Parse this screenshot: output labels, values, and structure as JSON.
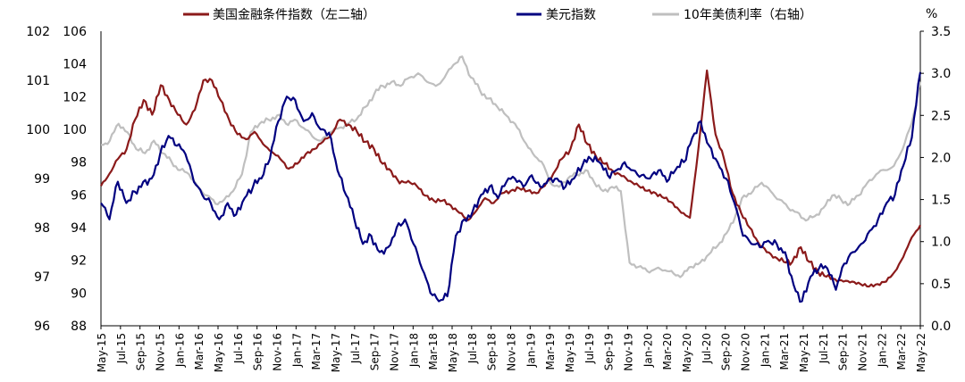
{
  "chart_data": {
    "type": "line",
    "title": "",
    "legend_position": "top",
    "grid": false,
    "x_ticks": [
      "May-15",
      "Jul-15",
      "Sep-15",
      "Nov-15",
      "Jan-16",
      "Mar-16",
      "May-16",
      "Jul-16",
      "Sep-16",
      "Nov-16",
      "Jan-17",
      "Mar-17",
      "May-17",
      "Jul-17",
      "Sep-17",
      "Nov-17",
      "Jan-18",
      "Mar-18",
      "May-18",
      "Jul-18",
      "Sep-18",
      "Nov-18",
      "Jan-19",
      "Mar-19",
      "May-19",
      "Jul-19",
      "Sep-19",
      "Nov-19",
      "Jan-20",
      "Mar-20",
      "May-20",
      "Jul-20",
      "Sep-20",
      "Nov-20",
      "Jan-21",
      "Mar-21",
      "May-21",
      "Jul-21",
      "Sep-21",
      "Nov-21",
      "Jan-22",
      "Mar-22",
      "May-22"
    ],
    "axes": {
      "left_outer": {
        "ticks": [
          "102",
          "101",
          "100",
          "99",
          "98",
          "97",
          "96"
        ],
        "range": [
          96,
          102
        ]
      },
      "left_inner": {
        "ticks": [
          "106",
          "104",
          "102",
          "100",
          "98",
          "96",
          "94",
          "92",
          "90",
          "88"
        ],
        "range": [
          88,
          106
        ]
      },
      "right": {
        "unit": "%",
        "ticks": [
          "3.5",
          "3.0",
          "2.5",
          "2.0",
          "1.5",
          "1.0",
          "0.5",
          "0.0"
        ],
        "range": [
          0,
          3.5
        ]
      }
    },
    "series": [
      {
        "name": "美国金融条件指数（左二轴）",
        "axis": "left_outer",
        "color": "#8B1A1A",
        "values": [
          98.85,
          99.1,
          99.4,
          99.6,
          100.2,
          100.6,
          100.3,
          100.9,
          100.6,
          100.3,
          100.1,
          100.4,
          101.0,
          101.0,
          100.6,
          100.2,
          99.9,
          99.8,
          99.95,
          99.7,
          99.55,
          99.4,
          99.2,
          99.3,
          99.5,
          99.6,
          99.75,
          99.9,
          100.2,
          100.1,
          99.95,
          99.75,
          99.6,
          99.3,
          99.15,
          98.9,
          98.95,
          98.85,
          98.65,
          98.55,
          98.55,
          98.45,
          98.3,
          98.15,
          98.35,
          98.6,
          98.5,
          98.7,
          98.75,
          98.8,
          98.75,
          98.7,
          98.85,
          99.1,
          99.4,
          99.6,
          100.1,
          99.7,
          99.45,
          99.3,
          99.15,
          99.05,
          98.95,
          98.85,
          98.75,
          98.7,
          98.6,
          98.5,
          98.3,
          98.2,
          99.6,
          101.2,
          99.9,
          99.4,
          98.7,
          98.3,
          98.0,
          97.7,
          97.5,
          97.4,
          97.3,
          97.3,
          97.6,
          97.3,
          97.1,
          97.0,
          96.95,
          96.9,
          96.9,
          96.85,
          96.8,
          96.85,
          96.9,
          97.1,
          97.4,
          97.8,
          98.05
        ]
      },
      {
        "name": "美元指数",
        "axis": "left_inner",
        "color": "#000080",
        "values": [
          95.5,
          94.5,
          96.8,
          95.5,
          96.2,
          96.8,
          97.0,
          98.5,
          99.6,
          99.0,
          98.5,
          96.8,
          96.0,
          95.5,
          94.5,
          95.5,
          94.8,
          95.8,
          96.5,
          97.0,
          98.2,
          100.5,
          102.0,
          101.8,
          100.5,
          101.0,
          100.0,
          99.8,
          97.5,
          96.0,
          94.5,
          93.0,
          93.5,
          92.5,
          92.8,
          94.0,
          94.5,
          93.0,
          91.5,
          90.0,
          89.5,
          89.8,
          93.5,
          94.5,
          95.0,
          96.0,
          96.5,
          95.8,
          96.8,
          97.0,
          96.5,
          97.2,
          96.5,
          97.0,
          97.0,
          96.5,
          97.0,
          97.8,
          98.2,
          98.0,
          97.2,
          97.5,
          98.0,
          97.5,
          97.2,
          97.0,
          97.5,
          96.8,
          97.5,
          98.0,
          99.5,
          100.5,
          99.0,
          98.0,
          97.0,
          95.5,
          93.5,
          93.0,
          92.8,
          93.2,
          93.0,
          92.5,
          90.5,
          89.5,
          91.0,
          91.5,
          91.5,
          90.2,
          91.8,
          92.5,
          93.0,
          93.8,
          94.5,
          95.5,
          96.0,
          97.8,
          99.5,
          103.5
        ]
      },
      {
        "name": "10年美债利率（右轴）",
        "axis": "right",
        "color": "#bfbfbf",
        "values": [
          2.15,
          2.2,
          2.4,
          2.3,
          2.1,
          2.05,
          2.2,
          2.05,
          1.95,
          1.85,
          1.8,
          1.65,
          1.55,
          1.45,
          1.5,
          1.6,
          1.8,
          2.3,
          2.4,
          2.45,
          2.5,
          2.4,
          2.45,
          2.35,
          2.25,
          2.2,
          2.3,
          2.35,
          2.4,
          2.45,
          2.6,
          2.75,
          2.85,
          2.9,
          2.85,
          2.95,
          3.0,
          2.9,
          2.85,
          2.95,
          3.1,
          3.2,
          2.95,
          2.8,
          2.7,
          2.6,
          2.5,
          2.4,
          2.2,
          2.05,
          1.95,
          1.7,
          1.65,
          1.75,
          1.8,
          1.85,
          1.7,
          1.6,
          1.65,
          1.6,
          0.75,
          0.7,
          0.65,
          0.68,
          0.66,
          0.62,
          0.6,
          0.7,
          0.75,
          0.85,
          0.95,
          1.1,
          1.3,
          1.55,
          1.6,
          1.7,
          1.6,
          1.5,
          1.4,
          1.35,
          1.25,
          1.3,
          1.4,
          1.55,
          1.5,
          1.45,
          1.55,
          1.7,
          1.8,
          1.85,
          1.9,
          2.1,
          2.4,
          2.9
        ]
      }
    ]
  }
}
